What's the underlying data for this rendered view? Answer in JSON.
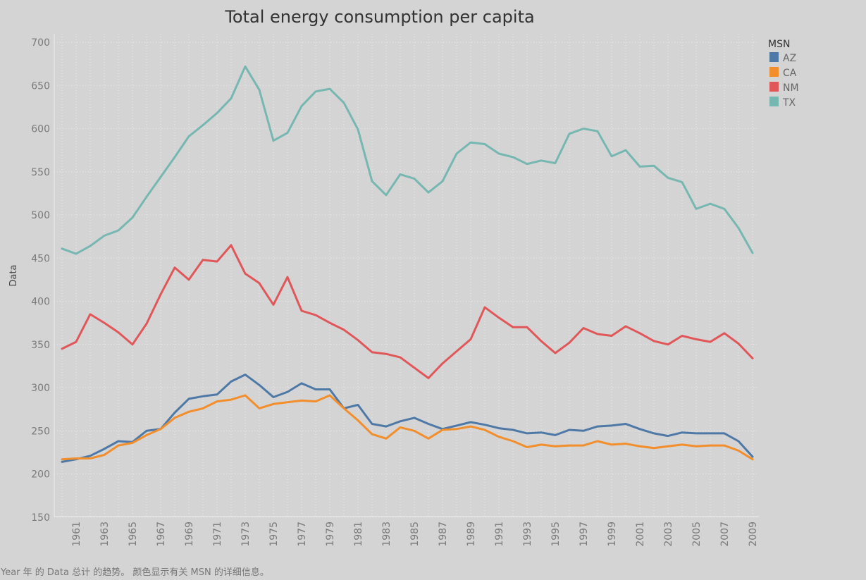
{
  "chart_data": {
    "type": "line",
    "title": "Total energy consumption per capita",
    "xlabel": "",
    "ylabel": "Data",
    "ylim": [
      145,
      705
    ],
    "yticks": [
      150,
      200,
      250,
      300,
      350,
      400,
      450,
      500,
      550,
      600,
      650,
      700
    ],
    "xticks": [
      1961,
      1963,
      1965,
      1967,
      1969,
      1971,
      1973,
      1975,
      1977,
      1979,
      1981,
      1983,
      1985,
      1987,
      1989,
      1991,
      1993,
      1995,
      1997,
      1999,
      2001,
      2003,
      2005,
      2007,
      2009
    ],
    "x": [
      1960,
      1961,
      1962,
      1963,
      1964,
      1965,
      1966,
      1967,
      1968,
      1969,
      1970,
      1971,
      1972,
      1973,
      1974,
      1975,
      1976,
      1977,
      1978,
      1979,
      1980,
      1981,
      1982,
      1983,
      1984,
      1985,
      1986,
      1987,
      1988,
      1989,
      1990,
      1991,
      1992,
      1993,
      1994,
      1995,
      1996,
      1997,
      1998,
      1999,
      2000,
      2001,
      2002,
      2003,
      2004,
      2005,
      2006,
      2007,
      2008,
      2009
    ],
    "legend_title": "MSN",
    "legend_position": "top-right",
    "grid": true,
    "series": [
      {
        "name": "AZ",
        "color": "#4e79a7",
        "values": [
          214,
          217,
          221,
          229,
          238,
          237,
          250,
          252,
          271,
          287,
          290,
          292,
          307,
          315,
          303,
          289,
          295,
          305,
          298,
          298,
          276,
          280,
          258,
          255,
          261,
          265,
          258,
          252,
          256,
          260,
          257,
          253,
          251,
          247,
          248,
          245,
          251,
          250,
          255,
          256,
          258,
          252,
          247,
          244,
          248,
          247,
          247,
          247,
          238,
          220
        ]
      },
      {
        "name": "CA",
        "color": "#f28e2b",
        "values": [
          217,
          218,
          218,
          222,
          233,
          236,
          245,
          252,
          265,
          272,
          276,
          284,
          286,
          291,
          276,
          281,
          283,
          285,
          284,
          291,
          276,
          262,
          246,
          241,
          254,
          250,
          241,
          251,
          252,
          255,
          251,
          243,
          238,
          231,
          234,
          232,
          233,
          233,
          238,
          234,
          235,
          232,
          230,
          232,
          234,
          232,
          233,
          233,
          227,
          217
        ]
      },
      {
        "name": "NM",
        "color": "#e15759",
        "values": [
          345,
          353,
          385,
          375,
          364,
          350,
          374,
          408,
          439,
          425,
          448,
          446,
          465,
          432,
          421,
          396,
          428,
          389,
          384,
          375,
          367,
          355,
          341,
          339,
          335,
          323,
          311,
          328,
          342,
          356,
          393,
          381,
          370,
          370,
          354,
          340,
          352,
          369,
          362,
          360,
          371,
          363,
          354,
          350,
          360,
          356,
          353,
          363,
          351,
          334
        ]
      },
      {
        "name": "TX",
        "color": "#76b7b2",
        "values": [
          461,
          455,
          464,
          476,
          482,
          497,
          521,
          544,
          567,
          591,
          604,
          618,
          635,
          672,
          645,
          586,
          595,
          626,
          643,
          646,
          630,
          599,
          539,
          523,
          547,
          542,
          526,
          539,
          571,
          584,
          582,
          571,
          567,
          559,
          563,
          560,
          594,
          600,
          597,
          568,
          575,
          556,
          557,
          543,
          538,
          507,
          513,
          507,
          485,
          456
        ]
      }
    ]
  },
  "caption": "Year 年 的 Data 总计 的趋势。 颜色显示有关 MSN 的详细信息。"
}
